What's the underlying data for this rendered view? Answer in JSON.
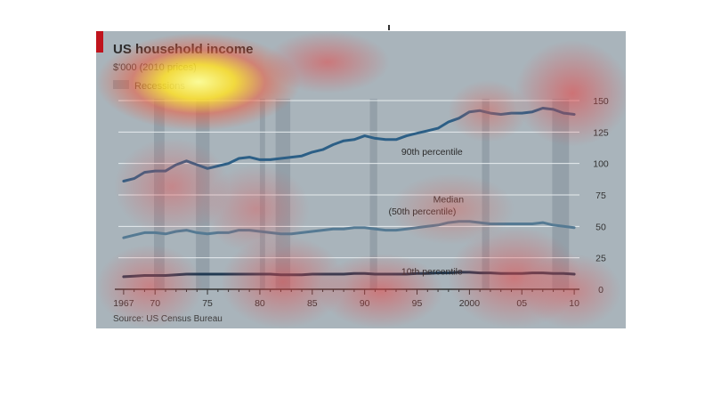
{
  "chart_data": {
    "type": "line",
    "title": "US household income",
    "subtitle": "$'000 (2010 prices)",
    "legend": [
      {
        "label": "Recessions",
        "color": "#8d9aa3"
      }
    ],
    "source": "Source: US Census Bureau",
    "xlabel": "",
    "ylabel": "",
    "xlim": [
      1966.5,
      2010.5
    ],
    "ylim": [
      0,
      150
    ],
    "x_ticks": [
      1967,
      1970,
      1975,
      1980,
      1985,
      1990,
      1995,
      2000,
      2005,
      2010
    ],
    "x_tick_labels": [
      "1967",
      "70",
      "75",
      "80",
      "85",
      "90",
      "95",
      "2000",
      "05",
      "10"
    ],
    "y_ticks": [
      0,
      25,
      50,
      75,
      100,
      125,
      150
    ],
    "y_tick_labels": [
      "0",
      "25",
      "50",
      "75",
      "100",
      "125",
      "150"
    ],
    "grid": "horizontal",
    "recessions": [
      [
        1969.9,
        1970.9
      ],
      [
        1973.9,
        1975.2
      ],
      [
        1980.0,
        1980.5
      ],
      [
        1981.5,
        1982.9
      ],
      [
        1990.5,
        1991.2
      ],
      [
        2001.2,
        2001.9
      ],
      [
        2007.9,
        2009.5
      ]
    ],
    "x": [
      1967,
      1968,
      1969,
      1970,
      1971,
      1972,
      1973,
      1974,
      1975,
      1976,
      1977,
      1978,
      1979,
      1980,
      1981,
      1982,
      1983,
      1984,
      1985,
      1986,
      1987,
      1988,
      1989,
      1990,
      1991,
      1992,
      1993,
      1994,
      1995,
      1996,
      1997,
      1998,
      1999,
      2000,
      2001,
      2002,
      2003,
      2004,
      2005,
      2006,
      2007,
      2008,
      2009,
      2010
    ],
    "series": [
      {
        "name": "90th percentile",
        "color": "#2c5f86",
        "values": [
          86,
          88,
          93,
          94,
          94,
          99,
          102,
          99,
          96,
          98,
          100,
          104,
          105,
          103,
          103,
          104,
          105,
          106,
          109,
          111,
          115,
          118,
          119,
          122,
          120,
          119,
          119,
          122,
          124,
          126,
          128,
          133,
          136,
          141,
          142,
          140,
          139,
          140,
          140,
          141,
          144,
          143,
          140,
          139
        ]
      },
      {
        "name": "Median\n(50th percentile)",
        "color": "#557a93",
        "values": [
          41,
          43,
          45,
          45,
          44,
          46,
          47,
          45,
          44,
          45,
          45,
          47,
          47,
          46,
          45,
          44,
          44,
          45,
          46,
          47,
          48,
          48,
          49,
          49,
          48,
          47,
          47,
          48,
          49,
          50,
          51,
          53,
          54,
          54,
          53,
          52,
          52,
          52,
          52,
          52,
          53,
          51,
          50,
          49
        ]
      },
      {
        "name": "10th percentile",
        "color": "#213a52",
        "values": [
          10,
          10.5,
          11,
          11,
          11,
          11.5,
          12,
          12,
          12,
          12,
          12,
          12,
          12,
          12,
          12,
          11.5,
          11.5,
          11.5,
          12,
          12,
          12,
          12,
          12.5,
          12.5,
          12,
          12,
          12,
          12,
          12.5,
          12.5,
          13,
          13,
          13.5,
          13.5,
          13,
          13,
          12.5,
          12.5,
          12.5,
          13,
          13,
          12.5,
          12.5,
          12
        ]
      }
    ]
  }
}
